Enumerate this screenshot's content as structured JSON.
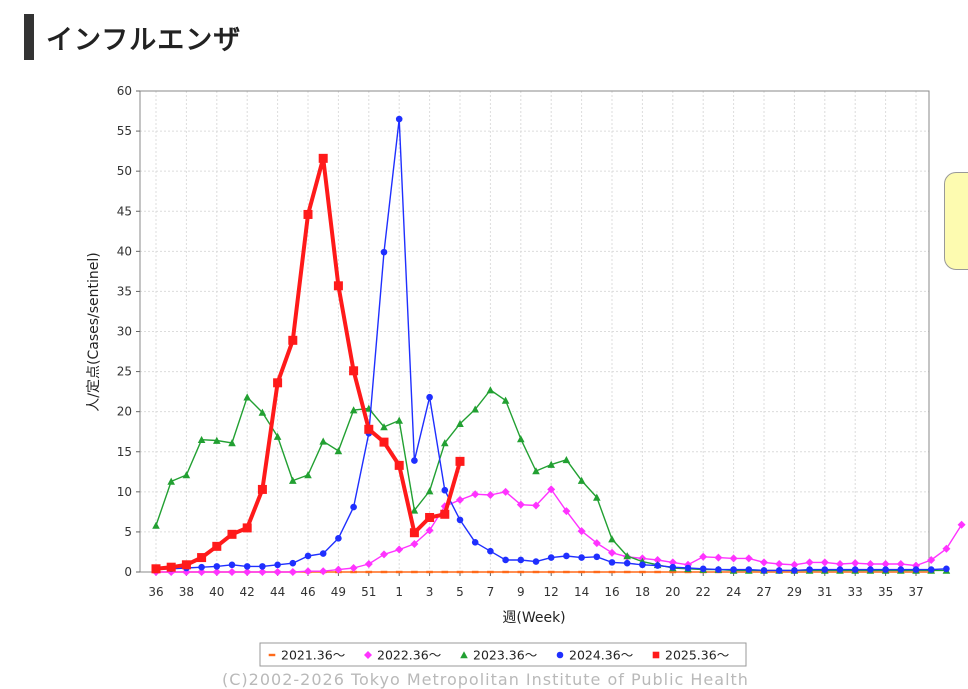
{
  "heading": {
    "title": "インフルエンザ"
  },
  "copyright": "(C)2002-2026 Tokyo Metropolitan Institute of Public Health",
  "chart_data": {
    "type": "line",
    "title": "",
    "xlabel": "週(Week)",
    "ylabel": "人/定点(Cases/sentinel)",
    "ylim": [
      0,
      60
    ],
    "yticks": [
      0,
      5,
      10,
      15,
      20,
      25,
      30,
      35,
      40,
      45,
      50,
      55,
      60
    ],
    "grid": true,
    "legend_position": "bottom",
    "x_tick_labels": [
      {
        "week": 0,
        "label": "36"
      },
      {
        "week": 2,
        "label": "38"
      },
      {
        "week": 4,
        "label": "40"
      },
      {
        "week": 6,
        "label": "42"
      },
      {
        "week": 8,
        "label": "44"
      },
      {
        "week": 10,
        "label": "46"
      },
      {
        "week": 12,
        "label": "49"
      },
      {
        "week": 14,
        "label": "51"
      },
      {
        "week": 16,
        "label": "1"
      },
      {
        "week": 18,
        "label": "3"
      },
      {
        "week": 20,
        "label": "5"
      },
      {
        "week": 22,
        "label": "7"
      },
      {
        "week": 24,
        "label": "9"
      },
      {
        "week": 26,
        "label": "12"
      },
      {
        "week": 28,
        "label": "14"
      },
      {
        "week": 30,
        "label": "16"
      },
      {
        "week": 32,
        "label": "18"
      },
      {
        "week": 34,
        "label": "20"
      },
      {
        "week": 36,
        "label": "22"
      },
      {
        "week": 38,
        "label": "24"
      },
      {
        "week": 40,
        "label": "27"
      },
      {
        "week": 42,
        "label": "29"
      },
      {
        "week": 44,
        "label": "31"
      },
      {
        "week": 46,
        "label": "33"
      },
      {
        "week": 48,
        "label": "35"
      },
      {
        "week": 50,
        "label": "37"
      }
    ],
    "series": [
      {
        "name": "2021.36～",
        "color": "#ff6a1a",
        "marker": "dash",
        "values": [
          0.0,
          0.0,
          0.0,
          0.0,
          0.0,
          0.0,
          0.0,
          0.0,
          0.0,
          0.0,
          0.0,
          0.0,
          0.0,
          0.0,
          0.0,
          0.0,
          0.0,
          0.0,
          0.0,
          0.0,
          0.0,
          0.0,
          0.0,
          0.0,
          0.0,
          0.0,
          0.0,
          0.0,
          0.0,
          0.0,
          0.0,
          0.0,
          0.0,
          0.0,
          0.0,
          0.0,
          0.0,
          0.0,
          0.0,
          0.0,
          0.0,
          0.0,
          0.0,
          0.0,
          0.0,
          0.0,
          0.0,
          0.0,
          0.0,
          0.0,
          0.0,
          0.0
        ]
      },
      {
        "name": "2022.36～",
        "color": "#ff33ff",
        "marker": "diamond",
        "values": [
          0.0,
          0.0,
          0.0,
          0.0,
          0.0,
          0.0,
          0.0,
          0.0,
          0.0,
          0.0,
          0.1,
          0.1,
          0.3,
          0.5,
          1.0,
          2.2,
          2.8,
          3.5,
          5.2,
          8.2,
          9.0,
          9.7,
          9.6,
          10.0,
          8.4,
          8.3,
          10.3,
          7.6,
          5.1,
          3.6,
          2.4,
          1.9,
          1.7,
          1.5,
          1.2,
          0.9,
          1.9,
          1.8,
          1.7,
          1.7,
          1.2,
          1.0,
          0.9,
          1.2,
          1.2,
          1.0,
          1.1,
          1.0,
          1.0,
          1.0,
          0.8,
          1.5,
          2.9,
          5.9
        ]
      },
      {
        "name": "2023.36～",
        "color": "#22a032",
        "marker": "triangle",
        "values": [
          5.8,
          11.3,
          12.1,
          16.5,
          16.4,
          16.1,
          21.8,
          19.9,
          16.9,
          11.4,
          12.1,
          16.3,
          15.1,
          20.2,
          20.4,
          18.1,
          18.9,
          7.7,
          10.1,
          16.1,
          18.5,
          20.3,
          22.7,
          21.4,
          16.6,
          12.6,
          13.4,
          14.0,
          11.4,
          9.3,
          4.1,
          2.0,
          1.3,
          0.9,
          0.5,
          0.4,
          0.3,
          0.3,
          0.2,
          0.2,
          0.2,
          0.2,
          0.2,
          0.2,
          0.2,
          0.2,
          0.2,
          0.2,
          0.2,
          0.2,
          0.2,
          0.2,
          0.2
        ]
      },
      {
        "name": "2024.36～",
        "color": "#1f2fff",
        "marker": "circle",
        "values": [
          0.3,
          0.4,
          0.5,
          0.6,
          0.7,
          0.9,
          0.7,
          0.7,
          0.9,
          1.1,
          2.0,
          2.3,
          4.2,
          8.1,
          17.3,
          39.9,
          56.5,
          13.9,
          21.8,
          10.2,
          6.5,
          3.7,
          2.6,
          1.5,
          1.5,
          1.3,
          1.8,
          2.0,
          1.8,
          1.9,
          1.2,
          1.1,
          0.9,
          0.8,
          0.6,
          0.5,
          0.4,
          0.3,
          0.3,
          0.3,
          0.2,
          0.2,
          0.2,
          0.3,
          0.3,
          0.3,
          0.3,
          0.3,
          0.3,
          0.3,
          0.3,
          0.3,
          0.4
        ]
      },
      {
        "name": "2025.36～",
        "color": "#ff1a1a",
        "marker": "square",
        "values": [
          0.4,
          0.6,
          0.9,
          1.8,
          3.2,
          4.7,
          5.5,
          10.3,
          23.6,
          28.9,
          44.6,
          51.6,
          35.7,
          25.1,
          17.8,
          16.2,
          13.3,
          4.9,
          6.8,
          7.2,
          13.8
        ]
      }
    ]
  }
}
